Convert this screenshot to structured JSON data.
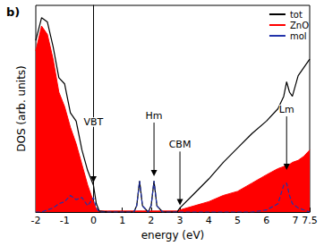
{
  "chart_data": {
    "type": "line",
    "title": "b)",
    "x_label": "energy (eV)",
    "y_label": "DOS (arb. units)",
    "x": [
      -2,
      -1.8,
      -1.6,
      -1.4,
      -1.2,
      -1.0,
      -0.8,
      -0.6,
      -0.4,
      -0.2,
      0,
      0.1,
      0.2,
      0.5,
      1.0,
      1.4,
      1.5,
      1.6,
      1.7,
      1.9,
      2.0,
      2.1,
      2.2,
      2.4,
      2.9,
      3.0,
      3.5,
      4.0,
      4.5,
      5.0,
      5.5,
      6.0,
      6.4,
      6.6,
      6.7,
      6.8,
      6.9,
      7.1,
      7.3,
      7.5
    ],
    "series": [
      {
        "name": "tot",
        "type": "line",
        "color": "#000000",
        "line_style": "solid",
        "marker": "none",
        "values": [
          8.3,
          9.4,
          9.2,
          8.0,
          6.5,
          6.2,
          4.8,
          4.4,
          3.0,
          2.0,
          1.3,
          0.4,
          0.05,
          0,
          0,
          0,
          0.3,
          1.5,
          0.3,
          0,
          0.3,
          1.5,
          0.3,
          0,
          0,
          0.2,
          0.9,
          1.6,
          2.4,
          3.1,
          3.8,
          4.4,
          5.0,
          5.6,
          6.3,
          5.8,
          5.6,
          6.6,
          7.0,
          7.4
        ]
      },
      {
        "name": "ZnO",
        "type": "area",
        "color": "#ff0000",
        "line_style": "solid",
        "marker": "none",
        "values": [
          7.8,
          9.0,
          8.6,
          7.4,
          5.8,
          5.1,
          4.1,
          3.3,
          2.3,
          1.3,
          0.5,
          0.15,
          0.05,
          0.05,
          0.05,
          0.05,
          0.05,
          0.05,
          0.05,
          0.05,
          0.05,
          0.05,
          0.05,
          0.05,
          0.05,
          0.1,
          0.3,
          0.5,
          0.8,
          1.0,
          1.4,
          1.8,
          2.1,
          2.2,
          2.3,
          2.3,
          2.4,
          2.5,
          2.7,
          3.0
        ]
      },
      {
        "name": "mol",
        "type": "line",
        "color": "#2233aa",
        "line_style": "dashed",
        "marker": "none",
        "values": [
          0,
          0,
          0.1,
          0.2,
          0.4,
          0.5,
          0.8,
          0.6,
          0.7,
          0.3,
          0.7,
          0.2,
          0,
          0,
          0,
          0,
          0.3,
          1.5,
          0.3,
          0,
          0.3,
          1.5,
          0.3,
          0,
          0,
          0,
          0,
          0,
          0,
          0,
          0,
          0.1,
          0.4,
          1.3,
          1.4,
          0.8,
          0.4,
          0.2,
          0.1,
          0
        ]
      }
    ],
    "xlim": [
      -2,
      7.5
    ],
    "xticks": [
      -2,
      -1,
      0,
      1,
      2,
      3,
      4,
      5,
      6,
      7
    ],
    "ylim": [
      0,
      10
    ],
    "tick_labels": "x",
    "grid": false,
    "legend": "top-right",
    "annotations": [
      {
        "text": "VBT",
        "x": 0,
        "y": 1.3
      },
      {
        "text": "Hm",
        "x": 2.1,
        "y": 1.6
      },
      {
        "text": "CBM",
        "x": 3.0,
        "y": 0.2
      },
      {
        "text": "Lm",
        "x": 6.7,
        "y": 1.9
      }
    ]
  }
}
